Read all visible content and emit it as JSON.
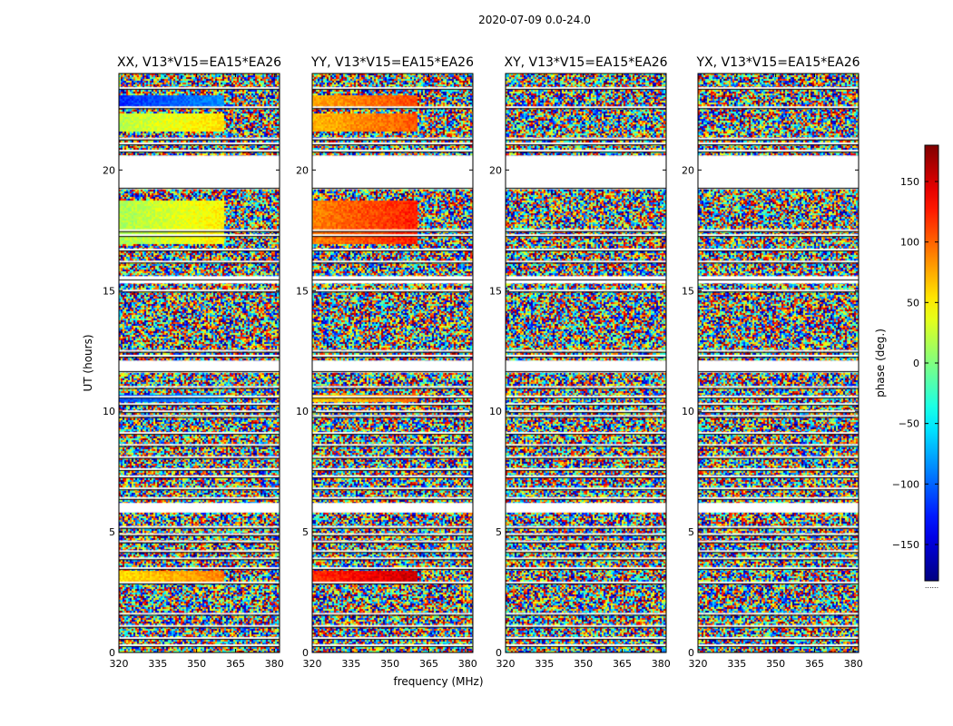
{
  "suptitle": "2020-07-09 0.0-24.0",
  "colors": {
    "gap_stripe": "#000000",
    "gap_fill": "#ffffff"
  },
  "chart_data": [
    {
      "type": "heatmap",
      "title": "XX, V13*V15=EA15*EA26",
      "xlabel": "frequency (MHz)",
      "ylabel": "UT (hours)",
      "xlim": [
        320,
        382
      ],
      "ylim": [
        0,
        24
      ],
      "xticks": [
        "320",
        "335",
        "350",
        "365",
        "380"
      ],
      "yticks": [
        "0",
        "5",
        "10",
        "15",
        "20"
      ],
      "coherent_bands": [
        {
          "t0": 22.7,
          "t1": 23.1,
          "phase": -120
        },
        {
          "t0": 21.6,
          "t1": 22.4,
          "phase": 20
        },
        {
          "t0": 17.0,
          "t1": 18.8,
          "phase": 15
        },
        {
          "t0": 10.4,
          "t1": 10.7,
          "phase": -110
        },
        {
          "t0": 3.0,
          "t1": 3.4,
          "phase": 55
        }
      ]
    },
    {
      "type": "heatmap",
      "title": "YY, V13*V15=EA15*EA26",
      "xlabel": "",
      "ylabel": "",
      "xlim": [
        320,
        382
      ],
      "ylim": [
        0,
        24
      ],
      "xticks": [
        "320",
        "335",
        "350",
        "365",
        "380"
      ],
      "yticks": [
        "0",
        "5",
        "10",
        "15",
        "20"
      ],
      "coherent_bands": [
        {
          "t0": 22.7,
          "t1": 23.1,
          "phase": 75
        },
        {
          "t0": 21.6,
          "t1": 22.4,
          "phase": 70
        },
        {
          "t0": 17.0,
          "t1": 18.8,
          "phase": 90
        },
        {
          "t0": 10.4,
          "t1": 10.7,
          "phase": 60
        },
        {
          "t0": 3.0,
          "t1": 3.4,
          "phase": 120
        }
      ]
    },
    {
      "type": "heatmap",
      "title": "XY, V13*V15=EA15*EA26",
      "xlabel": "",
      "ylabel": "",
      "xlim": [
        320,
        382
      ],
      "ylim": [
        0,
        24
      ],
      "xticks": [
        "320",
        "335",
        "350",
        "365",
        "380"
      ],
      "yticks": [
        "0",
        "5",
        "10",
        "15",
        "20"
      ],
      "coherent_bands": []
    },
    {
      "type": "heatmap",
      "title": "YX, V13*V15=EA15*EA26",
      "xlabel": "",
      "ylabel": "",
      "xlim": [
        320,
        382
      ],
      "ylim": [
        0,
        24
      ],
      "xticks": [
        "320",
        "335",
        "350",
        "365",
        "380"
      ],
      "yticks": [
        "0",
        "5",
        "10",
        "15",
        "20"
      ],
      "coherent_bands": []
    }
  ],
  "colorbar": {
    "label": "phase (deg.)",
    "colormap": "jet",
    "range": [
      -180,
      180
    ],
    "ticks": [
      "150",
      "100",
      "50",
      "0",
      "−50",
      "−100",
      "−150"
    ],
    "tick_values": [
      150,
      100,
      50,
      0,
      -50,
      -100,
      -150
    ],
    "footer": "......"
  },
  "flagged_blocks_ut": [
    [
      19.2,
      20.6
    ],
    [
      15.3,
      15.6
    ],
    [
      5.8,
      6.2
    ],
    [
      11.6,
      12.1
    ]
  ],
  "gap_lines_ut": [
    23.4,
    22.6,
    21.3,
    21.1,
    20.8,
    19.3,
    17.5,
    17.3,
    16.7,
    16.2,
    15.5,
    15.0,
    12.5,
    12.3,
    11.7,
    11.0,
    10.6,
    10.3,
    10.0,
    9.8,
    9.1,
    8.6,
    8.1,
    7.6,
    7.3,
    6.8,
    6.4,
    5.2,
    4.9,
    4.6,
    4.2,
    3.9,
    3.5,
    2.9,
    1.6,
    1.1,
    0.6,
    0.3
  ]
}
